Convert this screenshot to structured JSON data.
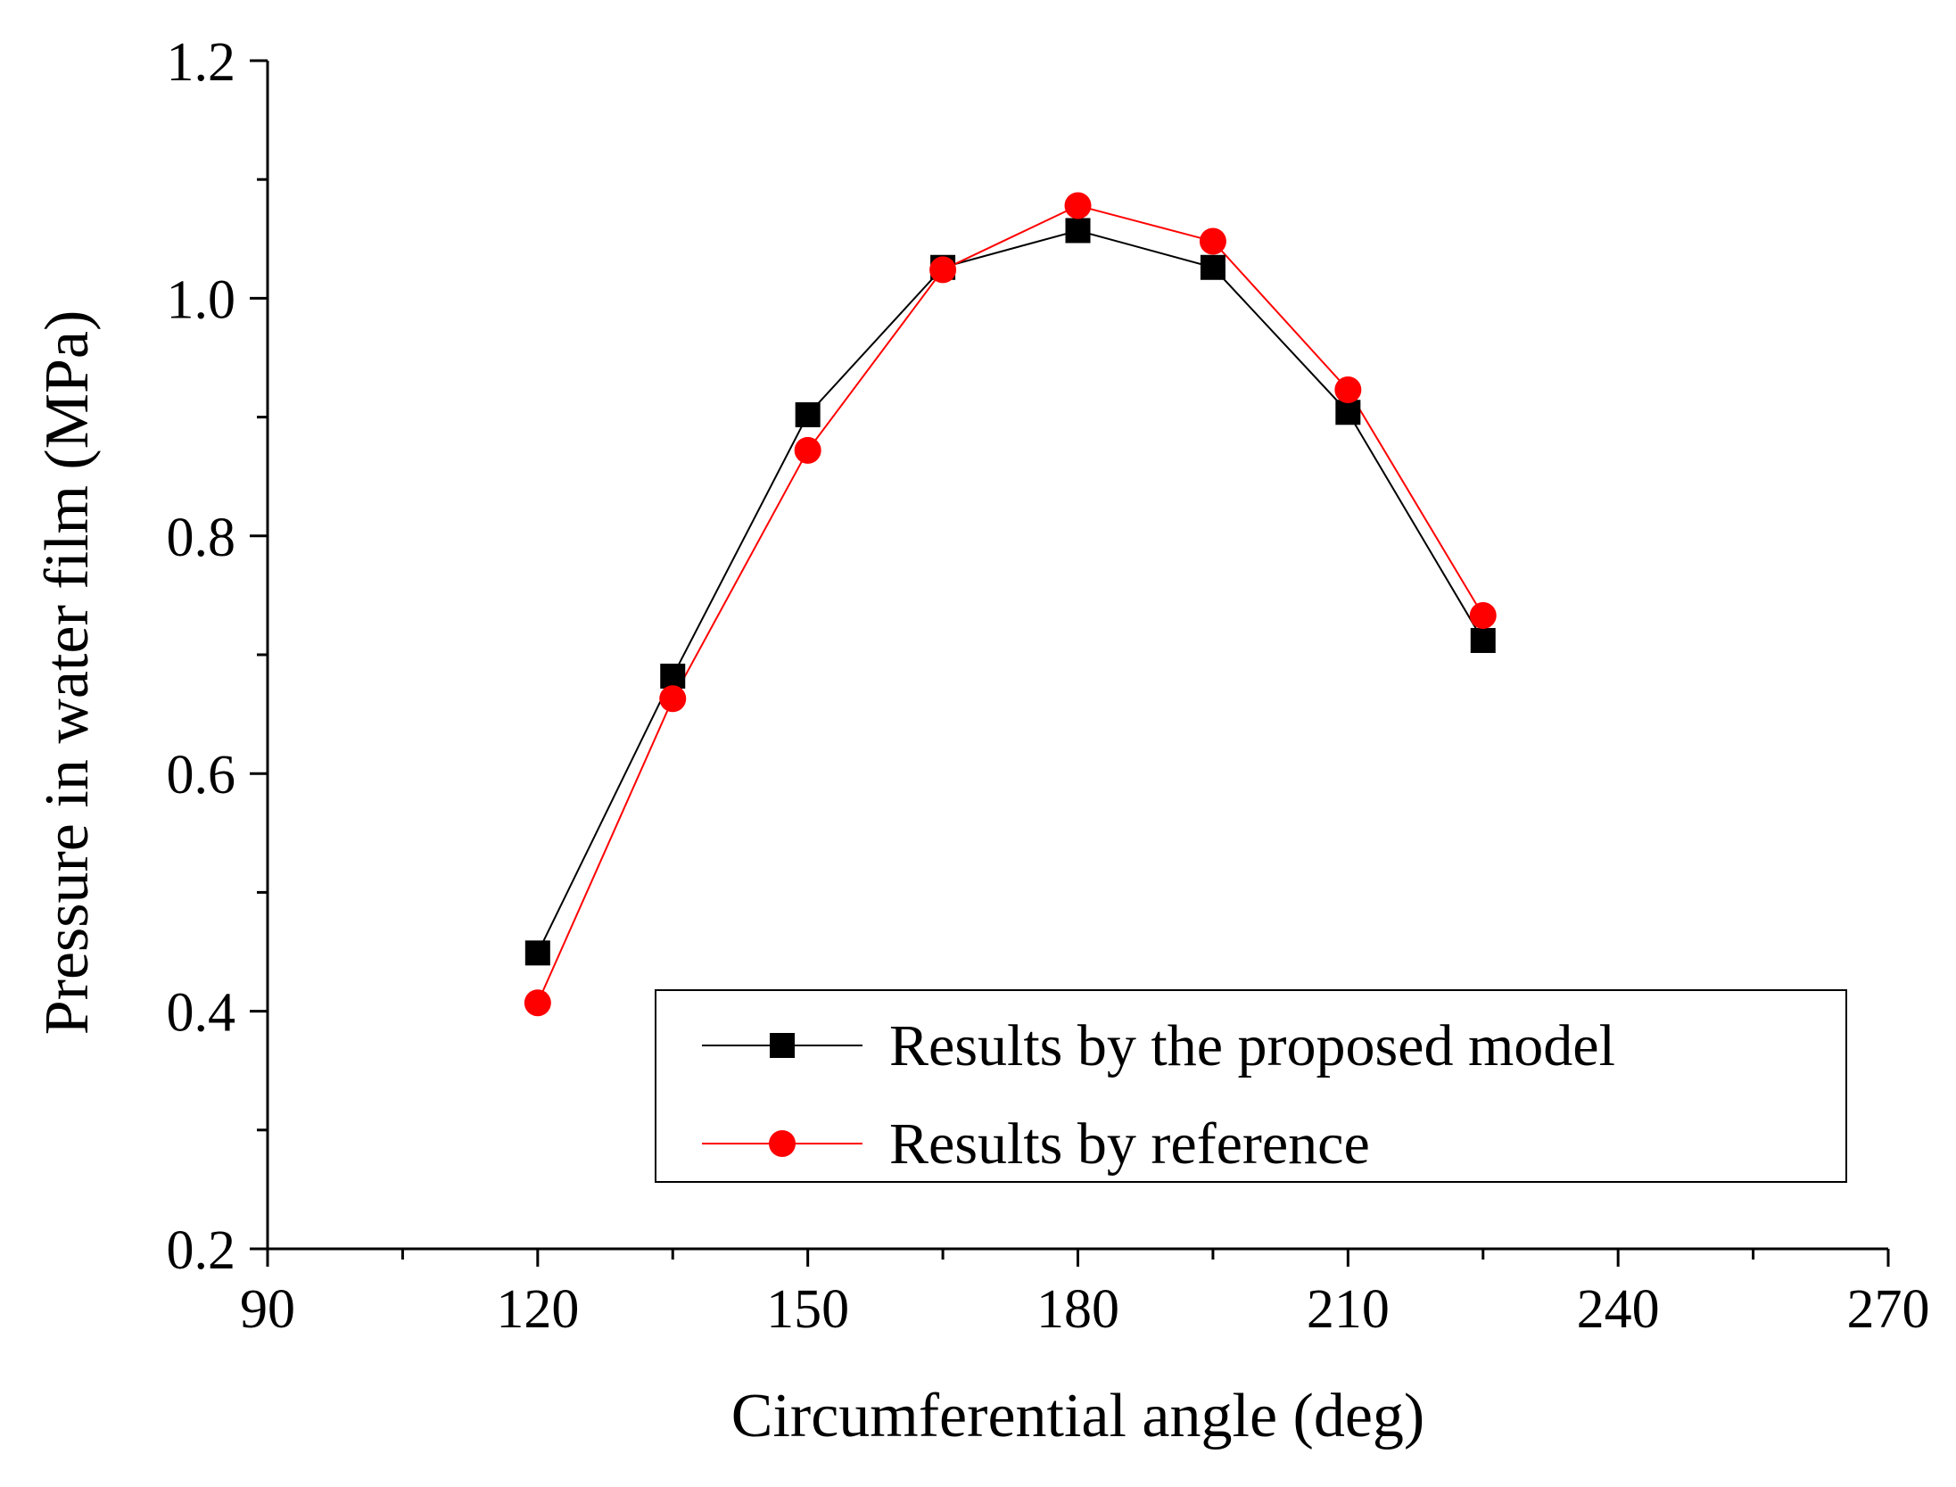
{
  "chart_data": {
    "type": "line",
    "title": "",
    "xlabel": "Circumferential angle (deg)",
    "ylabel": "Pressure in water film (MPa)",
    "xlim": [
      90,
      270
    ],
    "ylim": [
      0.2,
      1.2
    ],
    "xticks": [
      90,
      120,
      150,
      180,
      210,
      240,
      270
    ],
    "xtick_labels": [
      "90",
      "120",
      "150",
      "180",
      "210",
      "240",
      "270"
    ],
    "yticks": [
      0.2,
      0.4,
      0.6,
      0.8,
      1.0,
      1.2
    ],
    "ytick_labels": [
      "0.2",
      "0.4",
      "0.6",
      "0.8",
      "1.0",
      "1.2"
    ],
    "x_minor_step": 15,
    "y_minor_step": 0.1,
    "grid": false,
    "legend_position": "bottom-right",
    "x": [
      120,
      135,
      150,
      165,
      180,
      195,
      210,
      225
    ],
    "series": [
      {
        "name": "Results by the proposed model",
        "color": "#000000",
        "marker": "square",
        "values": [
          0.449,
          0.682,
          0.902,
          1.026,
          1.057,
          1.026,
          0.904,
          0.712
        ]
      },
      {
        "name": "Results by reference",
        "color": "#ff0000",
        "marker": "circle",
        "values": [
          0.407,
          0.663,
          0.872,
          1.024,
          1.078,
          1.048,
          0.923,
          0.733
        ]
      }
    ]
  }
}
